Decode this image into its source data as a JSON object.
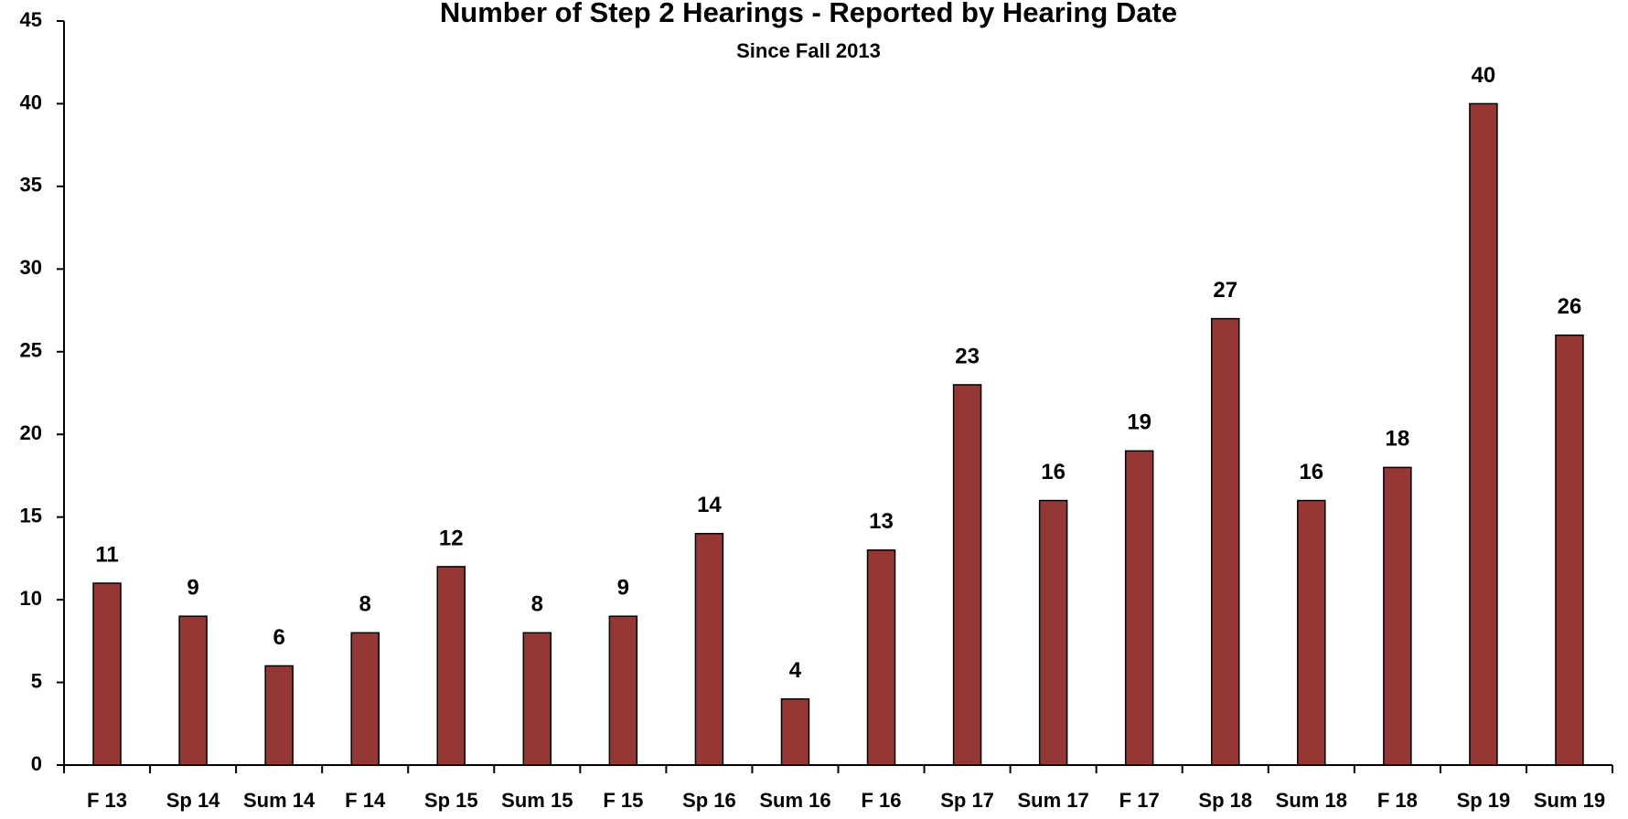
{
  "chart_data": {
    "type": "bar",
    "title": "Number of Step 2 Hearings - Reported by Hearing Date",
    "subtitle": "Since Fall 2013",
    "categories": [
      "F 13",
      "Sp 14",
      "Sum 14",
      "F 14",
      "Sp 15",
      "Sum 15",
      "F 15",
      "Sp 16",
      "Sum 16",
      "F 16",
      "Sp 17",
      "Sum 17",
      "F 17",
      "Sp 18",
      "Sum 18",
      "F 18",
      "Sp 19",
      "Sum 19"
    ],
    "values": [
      11,
      9,
      6,
      8,
      12,
      8,
      9,
      14,
      4,
      13,
      23,
      16,
      19,
      27,
      16,
      18,
      40,
      26
    ],
    "color": "#953735",
    "ylim": [
      0,
      45
    ],
    "yticks": [
      0,
      5,
      10,
      15,
      20,
      25,
      30,
      35,
      40,
      45
    ],
    "grid": false
  }
}
